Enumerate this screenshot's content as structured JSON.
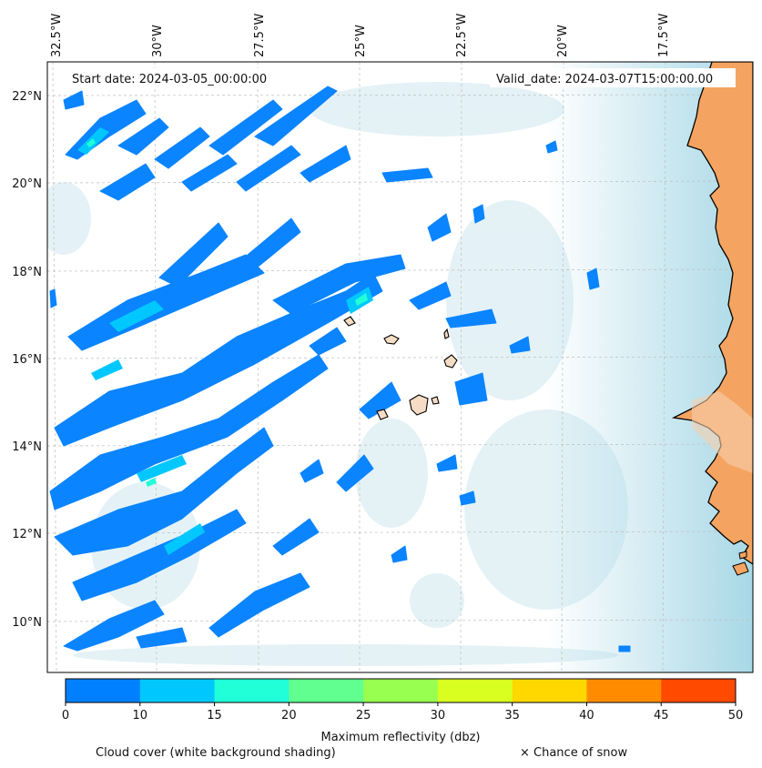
{
  "header": {
    "start_date": "Start date: 2024-03-05_00:00:00",
    "valid_date": "Valid_date: 2024-03-07T15:00:00.00"
  },
  "axes": {
    "longitude_labels": [
      "32.5°W",
      "30°W",
      "27.5°W",
      "25°W",
      "22.5°W",
      "20°W",
      "17.5°W"
    ],
    "latitude_labels": [
      "22°N",
      "20°N",
      "18°N",
      "16°N",
      "14°N",
      "12°N",
      "10°N"
    ]
  },
  "colorbar": {
    "label": "Maximum reflectivity (dbz)",
    "ticks": [
      "0",
      "10",
      "15",
      "20",
      "25",
      "30",
      "35",
      "40",
      "45",
      "50"
    ],
    "colors": [
      "#0080ff",
      "#00c8ff",
      "#20ffd8",
      "#60ff90",
      "#98ff50",
      "#d8ff20",
      "#ffd800",
      "#ff8c00",
      "#ff4a00"
    ]
  },
  "legend": {
    "cloud_cover": "Cloud cover (white background shading)",
    "snow": "× Chance of snow"
  },
  "colors": {
    "ocean_shading": "#a8d8e6",
    "land": "#f4a460",
    "reflectivity_base": "#0a84ff"
  }
}
